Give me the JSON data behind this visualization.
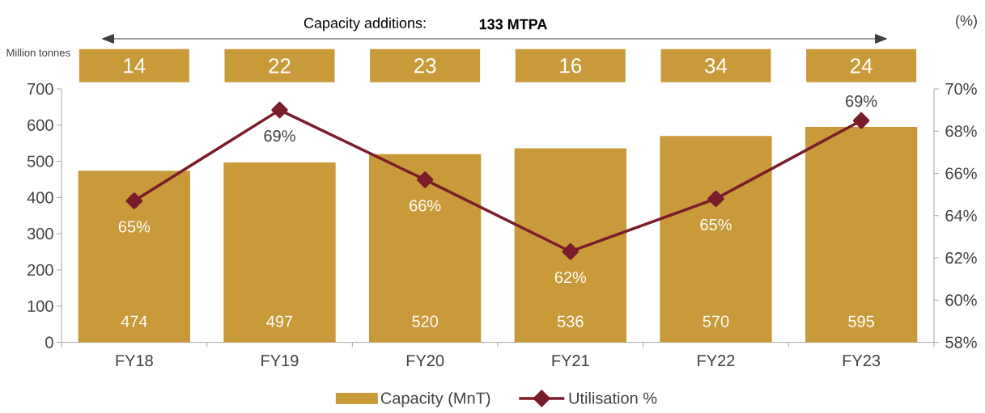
{
  "chart_data": {
    "type": "bar",
    "categories": [
      "FY18",
      "FY19",
      "FY20",
      "FY21",
      "FY22",
      "FY23"
    ],
    "series": [
      {
        "name": "Capacity (MnT)",
        "color": "#c89a3a",
        "values": [
          474,
          497,
          520,
          536,
          570,
          595
        ],
        "value_labels": [
          "474",
          "497",
          "520",
          "536",
          "570",
          "595"
        ]
      },
      {
        "name": "Utilisation %",
        "type": "line",
        "axis": "y2",
        "color": "#7b1c2a",
        "marker": "diamond",
        "values": [
          64.7,
          69.0,
          65.7,
          62.3,
          64.8,
          68.5
        ],
        "value_labels": [
          "65%",
          "69%",
          "66%",
          "62%",
          "65%",
          "69%"
        ]
      }
    ],
    "ylabel": "Million tonnes",
    "y2label": "(%)",
    "ylim": [
      0,
      700
    ],
    "yticks": [
      0,
      100,
      200,
      300,
      400,
      500,
      600,
      700
    ],
    "y2lim": [
      58,
      70
    ],
    "y2ticks": [
      {
        "value": 58,
        "label": "58%"
      },
      {
        "value": 60,
        "label": "60%"
      },
      {
        "value": 62,
        "label": "62%"
      },
      {
        "value": 64,
        "label": "64%"
      },
      {
        "value": 66,
        "label": "66%"
      },
      {
        "value": 68,
        "label": "68%"
      },
      {
        "value": 70,
        "label": "70%"
      }
    ],
    "annotations": [
      "Capacity additions:",
      "133 MTPA",
      "14",
      "22",
      "23",
      "16",
      "34",
      "24"
    ],
    "legend": "bottom"
  }
}
